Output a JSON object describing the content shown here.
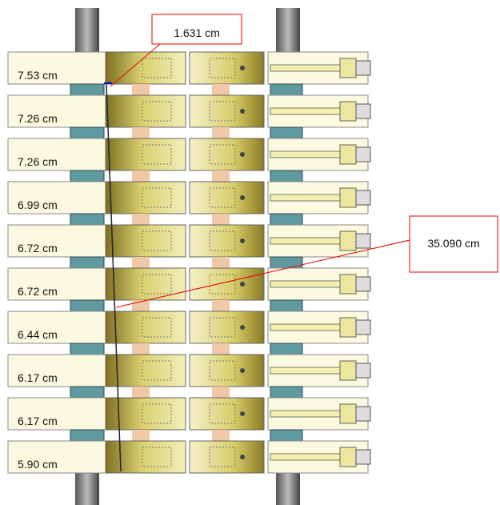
{
  "measurements": [
    "7.53 cm",
    "7.26 cm",
    "7.26 cm",
    "6.99 cm",
    "6.72 cm",
    "6.72 cm",
    "6.44 cm",
    "6.17 cm",
    "6.17 cm",
    "5.90 cm"
  ],
  "callouts": [
    {
      "label": "1.631 cm"
    },
    {
      "label": "35.090 cm"
    }
  ]
}
